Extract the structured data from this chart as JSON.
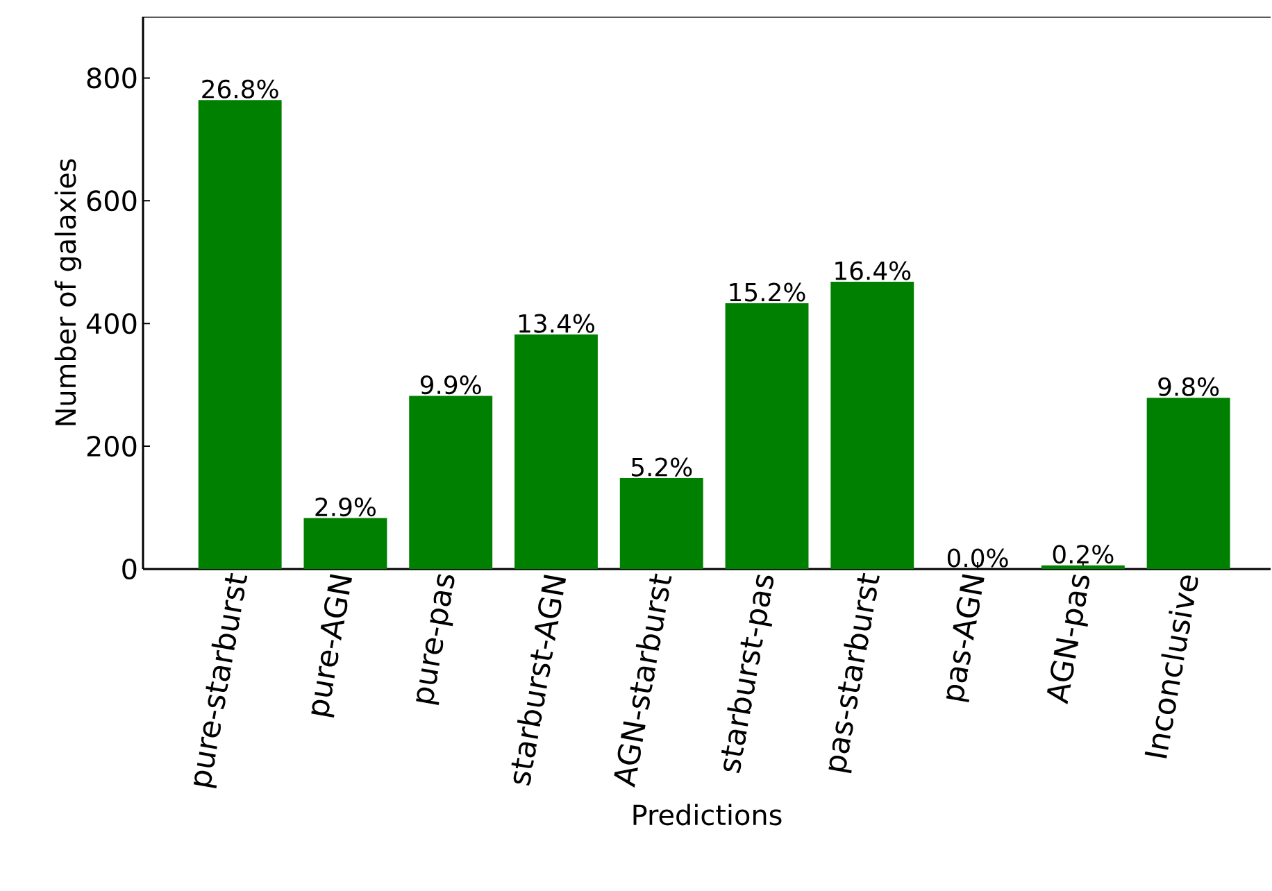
{
  "chart_data": {
    "type": "bar",
    "xlabel": "Predictions",
    "ylabel": "Number of galaxies",
    "categories": [
      "pure-starburst",
      "pure-AGN",
      "pure-pas",
      "starburst-AGN",
      "AGN-starburst",
      "starburst-pas",
      "pas-starburst",
      "pas-AGN",
      "AGN-pas",
      "Inconclusive"
    ],
    "values": [
      764,
      83,
      282,
      382,
      148,
      433,
      468,
      0,
      6,
      279
    ],
    "annotations": [
      {
        "text": "26.8%",
        "x": "pure-starburst",
        "y": 764
      },
      {
        "text": "2.9%",
        "x": "pure-AGN",
        "y": 83
      },
      {
        "text": "9.9%",
        "x": "pure-pas",
        "y": 282
      },
      {
        "text": "13.4%",
        "x": "starburst-AGN",
        "y": 382
      },
      {
        "text": "5.2%",
        "x": "AGN-starburst",
        "y": 148
      },
      {
        "text": "15.2%",
        "x": "starburst-pas",
        "y": 433
      },
      {
        "text": "16.4%",
        "x": "pas-starburst",
        "y": 468
      },
      {
        "text": "0.0%",
        "x": "pas-AGN",
        "y": 0
      },
      {
        "text": "0.2%",
        "x": "AGN-pas",
        "y": 6
      },
      {
        "text": "9.8%",
        "x": "Inconclusive",
        "y": 279
      }
    ],
    "color": "#008000",
    "ylim": [
      0,
      900
    ],
    "yticks": [
      0,
      200,
      400,
      600,
      800
    ],
    "grid": false
  }
}
